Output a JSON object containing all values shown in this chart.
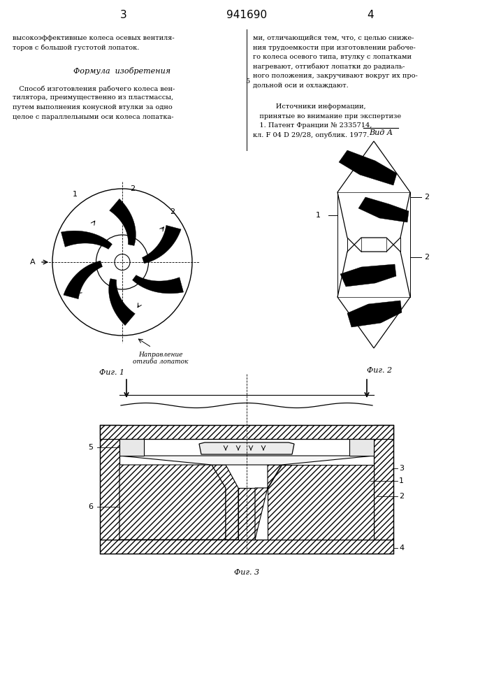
{
  "page_width": 7.07,
  "page_height": 10.0,
  "bg_color": "#ffffff",
  "line_color": "#000000",
  "text_color": "#000000",
  "header": {
    "left_num": "3",
    "center_num": "941690",
    "right_num": "4"
  },
  "left_col_text": [
    "высокоэффективные колеса осевых вентиля-",
    "торов с большой густотой лопаток."
  ],
  "formula_title": "Формула  изобретения",
  "formula_text": [
    "   Способ изготовления рабочего колеса вен-",
    "тилятора, преимущественно из пластмассы,",
    "путем выполнения конусной втулки за одно",
    "целое с параллельными оси колеса лопатка-"
  ],
  "right_col_text": [
    "ми, отличающийся тем, что, с целью сниже-",
    "ния трудоемкости при изготовлении рабоче-",
    "го колеса осевого типа, втулку с лопатками",
    "нагревают, отгибают лопатки до радиаль-",
    "ного положения, закручивают вокруг их про-",
    "дольной оси и охлаждают."
  ],
  "sources_title": "      Источники информации,",
  "sources_text": [
    "   принятые во внимание при экспертизе",
    "   1. Патент Франции № 2335714,",
    "кл. F 04 D 29/28, опублик. 1977."
  ],
  "fig1_label": "Фиг. 1",
  "fig2_label": "Фиг. 2",
  "fig3_label": "Фиг. 3",
  "vida_label": "Вид А"
}
